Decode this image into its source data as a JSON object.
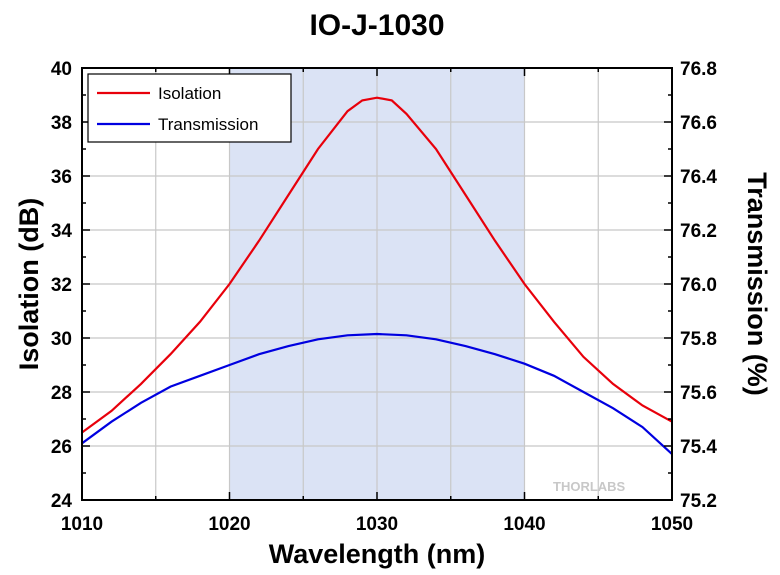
{
  "chart_data": {
    "type": "line",
    "title": "IO-J-1030",
    "xlabel": "Wavelength (nm)",
    "ylabel": "Isolation (dB)",
    "y2label": "Transmission (%)",
    "xlim": [
      1010,
      1050
    ],
    "ylim": [
      24,
      40
    ],
    "y2lim": [
      75.2,
      76.8
    ],
    "xticks": [
      "1010",
      "1020",
      "1030",
      "1040",
      "1050"
    ],
    "yticks": [
      "24",
      "26",
      "28",
      "30",
      "32",
      "34",
      "36",
      "38",
      "40"
    ],
    "y2ticks": [
      "75.2",
      "75.4",
      "75.6",
      "75.8",
      "76.0",
      "76.2",
      "76.4",
      "76.6",
      "76.8"
    ],
    "shaded_region": [
      1020,
      1040
    ],
    "grid": true,
    "legend_position": "top-left",
    "series": [
      {
        "name": "Isolation",
        "axis": "left",
        "color": "#e8000b",
        "x": [
          1010,
          1012,
          1014,
          1016,
          1018,
          1020,
          1022,
          1024,
          1026,
          1028,
          1029,
          1030,
          1031,
          1032,
          1034,
          1036,
          1038,
          1040,
          1042,
          1044,
          1046,
          1048,
          1050
        ],
        "y": [
          26.5,
          27.3,
          28.3,
          29.4,
          30.6,
          32.0,
          33.6,
          35.3,
          37.0,
          38.4,
          38.8,
          38.9,
          38.8,
          38.3,
          37.0,
          35.3,
          33.6,
          32.0,
          30.6,
          29.3,
          28.3,
          27.5,
          26.9
        ]
      },
      {
        "name": "Transmission",
        "axis": "right",
        "color": "#0000e0",
        "x": [
          1010,
          1012,
          1014,
          1016,
          1018,
          1020,
          1022,
          1024,
          1026,
          1028,
          1030,
          1032,
          1034,
          1036,
          1038,
          1040,
          1042,
          1044,
          1046,
          1048,
          1050
        ],
        "y": [
          75.41,
          75.49,
          75.56,
          75.62,
          75.66,
          75.7,
          75.74,
          75.77,
          75.795,
          75.81,
          75.815,
          75.81,
          75.795,
          75.77,
          75.74,
          75.705,
          75.66,
          75.6,
          75.54,
          75.47,
          75.37
        ]
      }
    ]
  },
  "watermark": "THORLABS"
}
